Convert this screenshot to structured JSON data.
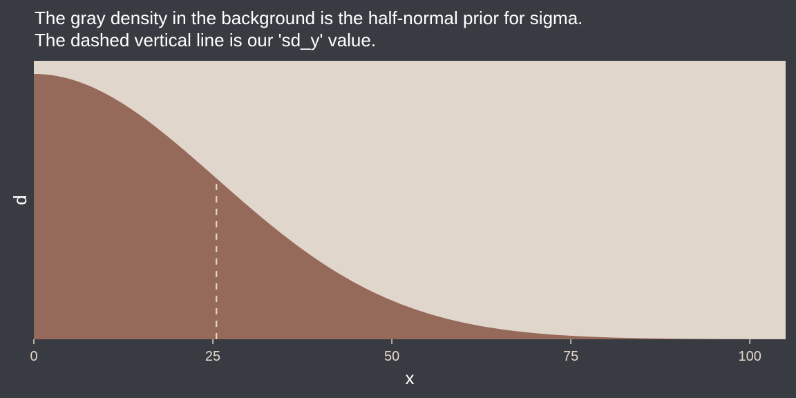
{
  "chart_data": {
    "type": "area",
    "title_lines": [
      "The gray density in the background is the half-normal prior for sigma.",
      "The dashed vertical line is our 'sd_y' value."
    ],
    "xlabel": "x",
    "ylabel": "d",
    "xlim": [
      0,
      105
    ],
    "x_ticks": [
      0,
      25,
      50,
      75,
      100
    ],
    "x_tick_labels": [
      "0",
      "25",
      "50",
      "75",
      "100"
    ],
    "series": [
      {
        "distribution": "half-normal",
        "mean": 0,
        "sd": 25.5,
        "x_range": [
          0,
          105
        ]
      }
    ],
    "sd_y": 25.5,
    "y_axis_ticks_shown": false,
    "grid": false,
    "colors": {
      "background": "#383b41",
      "panel": "#e1d6cb",
      "density_fill": "#966a5a",
      "dashed_line": "#e1d6cb",
      "text": "#ffffff",
      "tick_text": "#e3d6ca"
    }
  }
}
